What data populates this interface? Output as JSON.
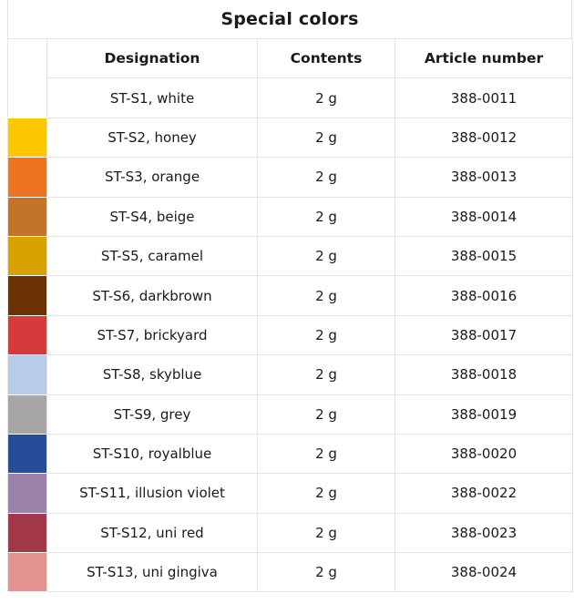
{
  "title": "Special colors",
  "headers": {
    "designation": "Designation",
    "contents": "Contents",
    "article_number": "Article number"
  },
  "rows": [
    {
      "designation": "ST-S1, white",
      "contents": "2 g",
      "article_number": "388-0011",
      "color": "#ffffff"
    },
    {
      "designation": "ST-S2, honey",
      "contents": "2 g",
      "article_number": "388-0012",
      "color": "#fec800"
    },
    {
      "designation": "ST-S3, orange",
      "contents": "2 g",
      "article_number": "388-0013",
      "color": "#ed7421"
    },
    {
      "designation": "ST-S4, beige",
      "contents": "2 g",
      "article_number": "388-0014",
      "color": "#c3742a"
    },
    {
      "designation": "ST-S5, caramel",
      "contents": "2 g",
      "article_number": "388-0015",
      "color": "#d7a200"
    },
    {
      "designation": "ST-S6, darkbrown",
      "contents": "2 g",
      "article_number": "388-0016",
      "color": "#6b3303"
    },
    {
      "designation": "ST-S7, brickyard",
      "contents": "2 g",
      "article_number": "388-0017",
      "color": "#d73a3b"
    },
    {
      "designation": "ST-S8, skyblue",
      "contents": "2 g",
      "article_number": "388-0018",
      "color": "#b8cbe9"
    },
    {
      "designation": "ST-S9, grey",
      "contents": "2 g",
      "article_number": "388-0019",
      "color": "#a6a6a6"
    },
    {
      "designation": "ST-S10, royalblue",
      "contents": "2 g",
      "article_number": "388-0020",
      "color": "#264d98"
    },
    {
      "designation": "ST-S11, illusion violet",
      "contents": "2 g",
      "article_number": "388-0022",
      "color": "#9b82aa"
    },
    {
      "designation": "ST-S12, uni red",
      "contents": "2 g",
      "article_number": "388-0023",
      "color": "#a33848"
    },
    {
      "designation": "ST-S13, uni gingiva",
      "contents": "2 g",
      "article_number": "388-0024",
      "color": "#e2938f"
    }
  ]
}
